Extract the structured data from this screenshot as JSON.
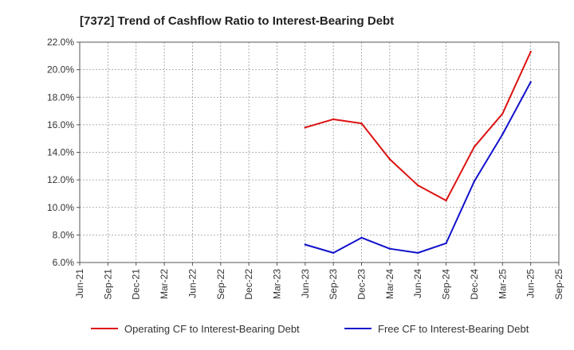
{
  "chart_data": {
    "type": "line",
    "title": "[7372]  Trend of Cashflow Ratio to Interest-Bearing Debt",
    "xlabel": "",
    "ylabel": "",
    "ylim": [
      6.0,
      22.0
    ],
    "y_ticks": [
      "6.0%",
      "8.0%",
      "10.0%",
      "12.0%",
      "14.0%",
      "16.0%",
      "18.0%",
      "20.0%",
      "22.0%"
    ],
    "categories": [
      "Jun-21",
      "Sep-21",
      "Dec-21",
      "Mar-22",
      "Jun-22",
      "Sep-22",
      "Dec-22",
      "Mar-23",
      "Jun-23",
      "Sep-23",
      "Dec-23",
      "Mar-24",
      "Jun-24",
      "Sep-24",
      "Dec-24",
      "Mar-25",
      "Jun-25",
      "Sep-25"
    ],
    "grid": true,
    "legend_position": "bottom",
    "series": [
      {
        "name": "Operating CF to Interest-Bearing Debt",
        "color": "#dd1111",
        "values": [
          null,
          null,
          null,
          null,
          null,
          null,
          null,
          null,
          15.8,
          16.4,
          16.1,
          13.5,
          11.6,
          10.5,
          14.4,
          16.8,
          21.3,
          null
        ]
      },
      {
        "name": "Free CF to Interest-Bearing Debt",
        "color": "#1111cc",
        "values": [
          null,
          null,
          null,
          null,
          null,
          null,
          null,
          null,
          7.3,
          6.7,
          7.8,
          7.0,
          6.7,
          7.4,
          11.9,
          15.3,
          19.1,
          null
        ]
      }
    ]
  }
}
